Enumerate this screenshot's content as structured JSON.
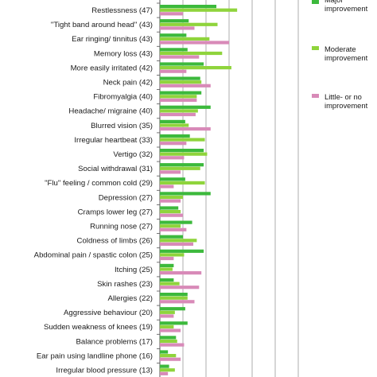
{
  "chart_data": {
    "type": "bar",
    "orientation": "horizontal",
    "grid": true,
    "legend_position": "right",
    "categories": [
      "Restlessness (47)",
      "\"Tight band around head\" (43)",
      "Ear ringing/ tinnitus (43)",
      "Memory loss (43)",
      "More easily irritated (42)",
      "Neck pain (42)",
      "Fibromyalgia (40)",
      "Headache/ migraine (40)",
      "Blurred vision (35)",
      "Irregular heartbeat (33)",
      "Vertigo (32)",
      "Social withdrawal (31)",
      "\"Flu\" feeling / common cold (29)",
      "Depression (27)",
      "Cramps lower leg (27)",
      "Running nose (27)",
      "Coldness of limbs (26)",
      "Abdominal pain / spastic colon (25)",
      "Itching (25)",
      "Skin rashes (23)",
      "Allergies (22)",
      "Aggressive behaviour (20)",
      "Sudden weakness of knees (19)",
      "Balance problems (17)",
      "Ear pain using landline phone (16)",
      "Irregular blood pressure (13)"
    ],
    "series": [
      {
        "name": "Major improvement",
        "color": "#3cb93c",
        "values": [
          49,
          25,
          23,
          24,
          38,
          35,
          36,
          44,
          22,
          26,
          38,
          38,
          22,
          44,
          16,
          28,
          20,
          38,
          12,
          12,
          24,
          22,
          24,
          14,
          7,
          8
        ]
      },
      {
        "name": "Moderate improvement",
        "color": "#8fd43c",
        "values": [
          67,
          50,
          43,
          54,
          62,
          36,
          32,
          33,
          25,
          39,
          41,
          35,
          39,
          20,
          18,
          18,
          32,
          21,
          11,
          17,
          24,
          13,
          12,
          15,
          14,
          13
        ]
      },
      {
        "name": "Little- or no improvement",
        "color": "#d88ab8",
        "values": [
          20,
          30,
          60,
          34,
          23,
          44,
          32,
          31,
          44,
          23,
          21,
          18,
          12,
          18,
          20,
          23,
          29,
          12,
          36,
          34,
          30,
          12,
          18,
          21,
          18,
          7
        ]
      }
    ],
    "xlim": [
      0,
      130
    ]
  }
}
